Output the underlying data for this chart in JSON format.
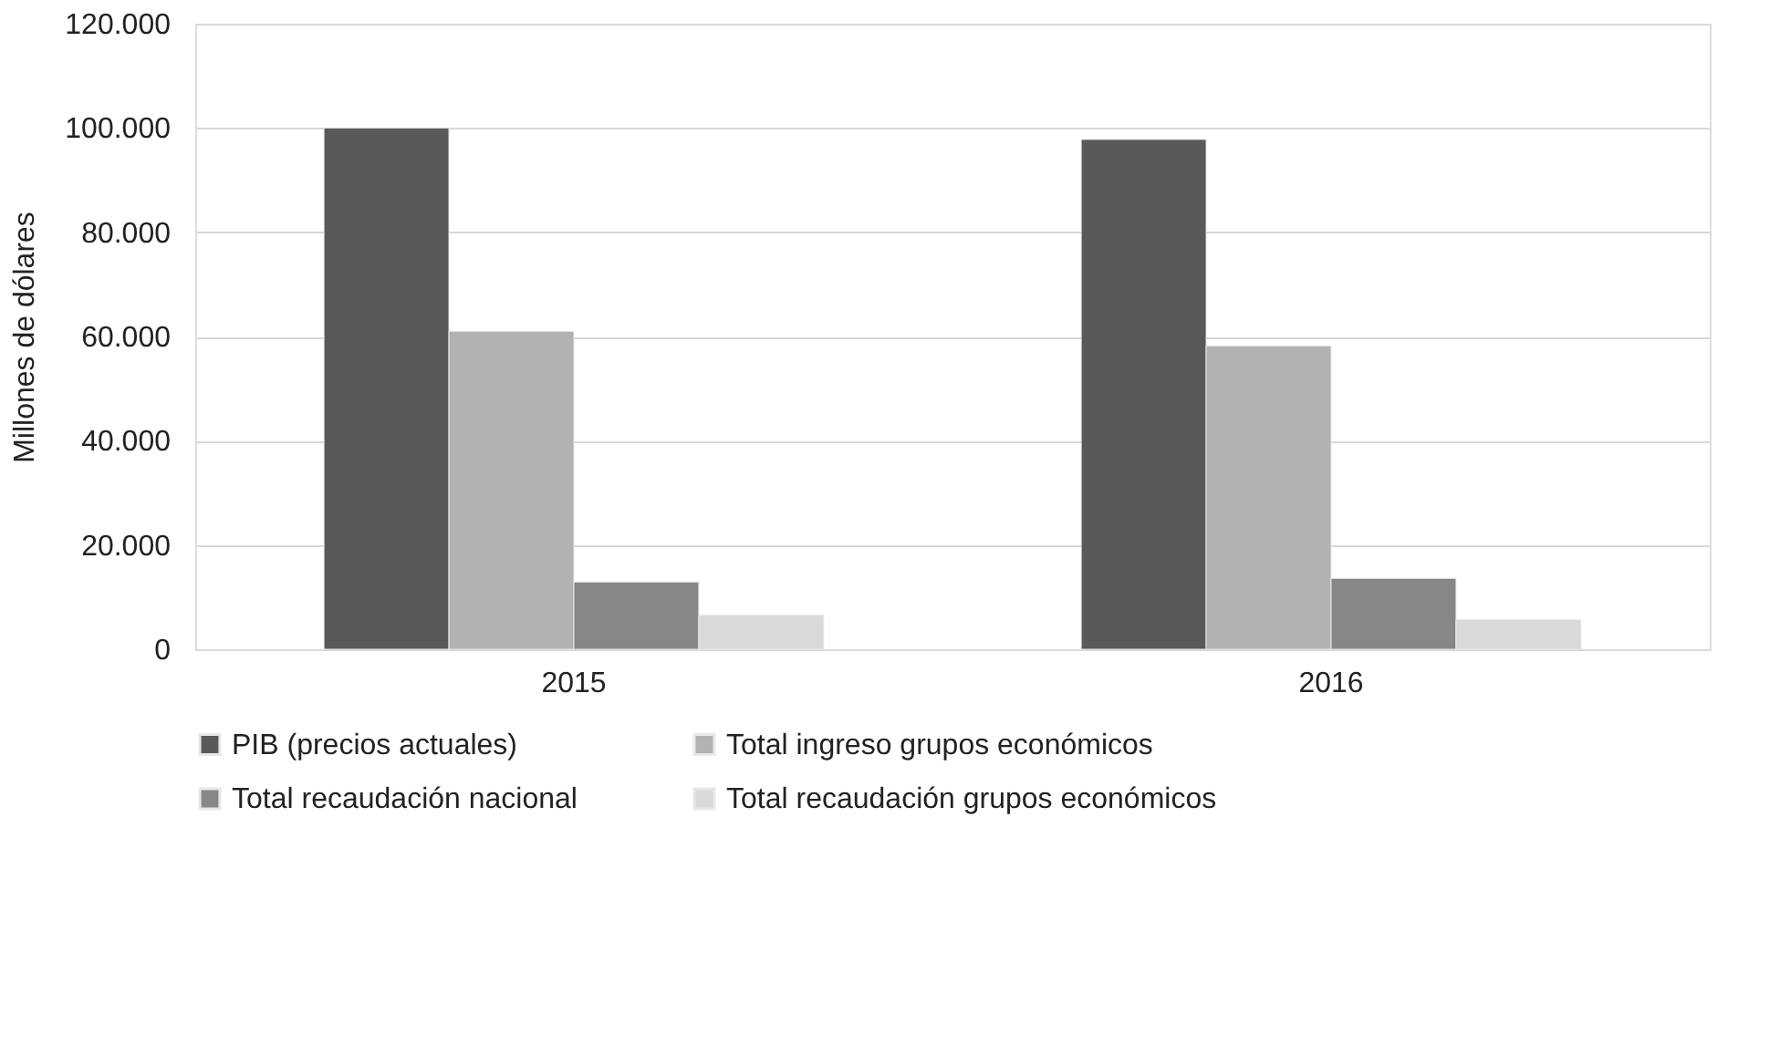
{
  "chart_data": {
    "type": "bar",
    "ylabel": "Millones de dólares",
    "categories": [
      "2015",
      "2016"
    ],
    "series": [
      {
        "name": "PIB (precios actuales)",
        "color": "#595959",
        "values": [
          100000,
          97800
        ]
      },
      {
        "name": "Total ingreso grupos económicos",
        "color": "#b2b2b2",
        "values": [
          61000,
          58200
        ]
      },
      {
        "name": "Total recaudación nacional",
        "color": "#878787",
        "values": [
          12900,
          13600
        ]
      },
      {
        "name": "Total recaudación grupos económicos",
        "color": "#d9d9d9",
        "values": [
          6500,
          5700
        ]
      }
    ],
    "ylim": [
      0,
      120000
    ],
    "yticks": [
      0,
      {
        "value": 20000,
        "label": "20.000"
      },
      {
        "value": 40000,
        "label": "40.000"
      },
      {
        "value": 60000,
        "label": "60.000"
      },
      {
        "value": 80000,
        "label": "80.000"
      },
      {
        "value": 100000,
        "label": "100.000"
      },
      {
        "value": 120000,
        "label": "120.000"
      }
    ],
    "grid": "y",
    "legend": "bottom"
  }
}
